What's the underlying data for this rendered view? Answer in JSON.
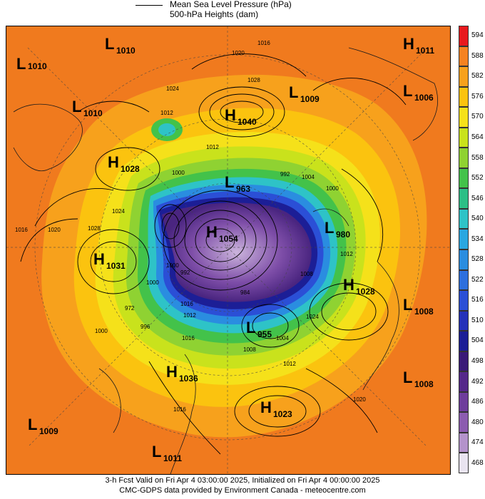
{
  "legend": {
    "line_label": "Mean Sea Level Pressure (hPa)",
    "fill_label": "500-hPa Heights (dam)"
  },
  "color_scale": {
    "labels": [
      "594",
      "588",
      "582",
      "576",
      "570",
      "564",
      "558",
      "552",
      "546",
      "540",
      "534",
      "528",
      "522",
      "516",
      "510",
      "504",
      "498",
      "492",
      "486",
      "480",
      "474",
      "468"
    ],
    "colors": [
      "#e8191e",
      "#f58220",
      "#f7a11c",
      "#fbc30f",
      "#f5e11a",
      "#c9e21c",
      "#8fd232",
      "#43c24a",
      "#2bbf86",
      "#2ec3c7",
      "#29a7e1",
      "#2a8de0",
      "#2d6fde",
      "#2b4fd6",
      "#2531b9",
      "#1c1e96",
      "#3a1a78",
      "#55288a",
      "#6e3d9c",
      "#8c5cb0",
      "#b493cb",
      "#e9e4f0"
    ]
  },
  "systems": [
    {
      "type": "L",
      "value": "1010"
    },
    {
      "type": "L",
      "value": "1010"
    },
    {
      "type": "L",
      "value": "1010"
    },
    {
      "type": "H",
      "value": "1011"
    },
    {
      "type": "H",
      "value": "1040"
    },
    {
      "type": "L",
      "value": "1009"
    },
    {
      "type": "L",
      "value": "1006"
    },
    {
      "type": "H",
      "value": "1028"
    },
    {
      "type": "L",
      "value": "963"
    },
    {
      "type": "H",
      "value": "1054"
    },
    {
      "type": "L",
      "value": "980"
    },
    {
      "type": "H",
      "value": "1031"
    },
    {
      "type": "H",
      "value": "1028"
    },
    {
      "type": "L",
      "value": "1008"
    },
    {
      "type": "L",
      "value": "955"
    },
    {
      "type": "H",
      "value": "1036"
    },
    {
      "type": "L",
      "value": "1008"
    },
    {
      "type": "H",
      "value": "1023"
    },
    {
      "type": "L",
      "value": "1009"
    },
    {
      "type": "L",
      "value": "1011"
    }
  ],
  "isobar_labels": [
    "1016",
    "1020",
    "1024",
    "1028",
    "1012",
    "1012",
    "1000",
    "992",
    "1004",
    "1000",
    "1024",
    "1028",
    "1020",
    "1016",
    "1012",
    "1000",
    "992",
    "1008",
    "1012",
    "1016",
    "1000",
    "972",
    "996",
    "984",
    "1012",
    "1016",
    "1008",
    "1004",
    "1000",
    "1024",
    "1016",
    "1020"
  ],
  "footer": {
    "line1": "3-h Fcst Valid on Fri Apr  4 03:00:00 2025, Initialized on Fri Apr  4 00:00:00 2025",
    "line2": "CMC-GDPS data provided by Environment Canada - meteocentre.com"
  }
}
